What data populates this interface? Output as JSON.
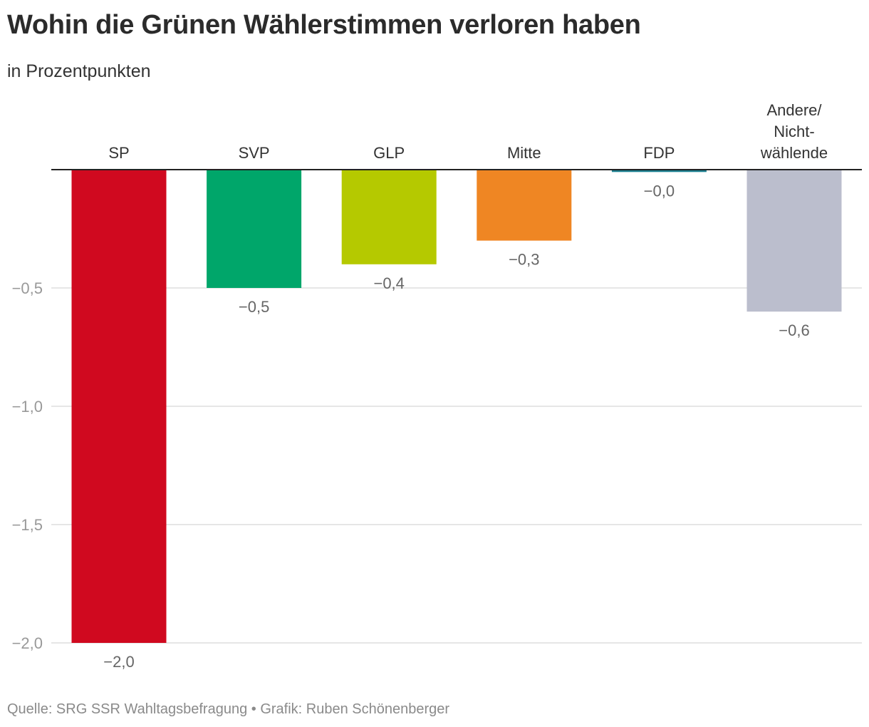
{
  "header": {
    "title": "Wohin die Grünen Wählerstimmen verloren haben",
    "subtitle": "in Prozentpunkten"
  },
  "footer": {
    "source": "Quelle: SRG SSR Wahltagsbefragung • Grafik: Ruben Schönenberger"
  },
  "chart_data": {
    "type": "bar",
    "categories": [
      "SP",
      "SVP",
      "GLP",
      "Mitte",
      "FDP",
      "Andere/ Nicht- wählende"
    ],
    "category_lines": [
      [
        "SP"
      ],
      [
        "SVP"
      ],
      [
        "GLP"
      ],
      [
        "Mitte"
      ],
      [
        "FDP"
      ],
      [
        "Andere/",
        "Nicht-",
        "wählende"
      ]
    ],
    "values": [
      -2.0,
      -0.5,
      -0.4,
      -0.3,
      -0.01,
      -0.6
    ],
    "value_labels": [
      "−2,0",
      "−0,5",
      "−0,4",
      "−0,3",
      "−0,0",
      "−0,6"
    ],
    "colors": [
      "#d0091f",
      "#00a66a",
      "#b5c900",
      "#ef8623",
      "#1b7f8f",
      "#bbbecd"
    ],
    "yticks": [
      -0.5,
      -1.0,
      -1.5,
      -2.0
    ],
    "ytick_labels": [
      "−0,5",
      "−1,0",
      "−1,5",
      "−2,0"
    ],
    "ylim": [
      -2.0,
      0
    ],
    "grid": true,
    "baseline_color": "#222222",
    "grid_color": "#dddddd"
  }
}
